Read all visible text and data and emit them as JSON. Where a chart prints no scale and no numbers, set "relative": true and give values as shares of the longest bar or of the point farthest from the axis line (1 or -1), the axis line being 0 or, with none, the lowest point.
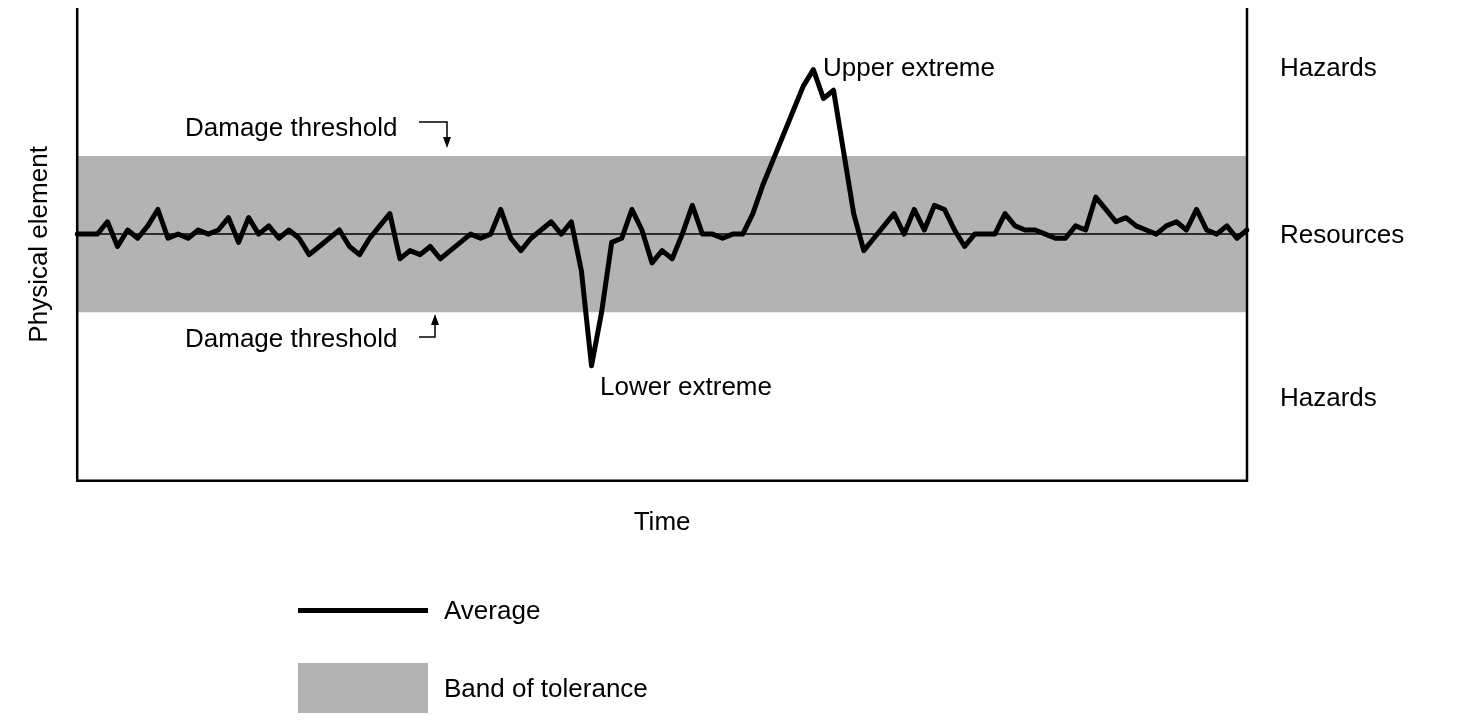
{
  "chart_data": {
    "type": "line",
    "relative": true,
    "xlabel": "Time",
    "ylabel": "Physical element",
    "tick_labels": false,
    "grid": false,
    "legend": "bottom",
    "marker": "none",
    "line_style": "solid",
    "categories": [
      null,
      null,
      null,
      null,
      null,
      null,
      null,
      null,
      null,
      null,
      null,
      null,
      null,
      null,
      null,
      null,
      null,
      null,
      null,
      null,
      null,
      null,
      null,
      null,
      null,
      null,
      null,
      null,
      null,
      null,
      null,
      null,
      null,
      null,
      null,
      null,
      null,
      null,
      null,
      null,
      null,
      null,
      null,
      null,
      null,
      null,
      null,
      null,
      null,
      null,
      null,
      null,
      null,
      null,
      null,
      null,
      null,
      null,
      null,
      null,
      null,
      null,
      null,
      null,
      null,
      null,
      null,
      null,
      null,
      null,
      null,
      null,
      null,
      null,
      null,
      null,
      null,
      null,
      null,
      null,
      null,
      null,
      null,
      null,
      null,
      null,
      null,
      null,
      null,
      null,
      null,
      null,
      null,
      null,
      null,
      null,
      null,
      null,
      null,
      null,
      null,
      null,
      null,
      null,
      null,
      null,
      null,
      null,
      null,
      null,
      null,
      null,
      null,
      null,
      null,
      null,
      null
    ],
    "series": [
      {
        "name": "Average",
        "color": "#000000",
        "values": [
          0.6,
          0.6,
          0.6,
          0.63,
          0.57,
          0.61,
          0.59,
          0.62,
          0.66,
          0.59,
          0.6,
          0.59,
          0.61,
          0.6,
          0.61,
          0.64,
          0.58,
          0.64,
          0.6,
          0.62,
          0.59,
          0.61,
          0.59,
          0.55,
          0.57,
          0.59,
          0.61,
          0.57,
          0.55,
          0.59,
          0.62,
          0.65,
          0.54,
          0.56,
          0.55,
          0.57,
          0.54,
          0.56,
          0.58,
          0.6,
          0.59,
          0.6,
          0.66,
          0.59,
          0.56,
          0.59,
          0.61,
          0.63,
          0.6,
          0.63,
          0.51,
          0.28,
          0.41,
          0.58,
          0.59,
          0.66,
          0.61,
          0.53,
          0.56,
          0.54,
          0.6,
          0.67,
          0.6,
          0.6,
          0.59,
          0.6,
          0.6,
          0.65,
          0.72,
          0.78,
          0.84,
          0.9,
          0.96,
          1.0,
          0.93,
          0.95,
          0.8,
          0.65,
          0.56,
          0.59,
          0.62,
          0.65,
          0.6,
          0.66,
          0.61,
          0.67,
          0.66,
          0.61,
          0.57,
          0.6,
          0.6,
          0.6,
          0.65,
          0.62,
          0.61,
          0.61,
          0.6,
          0.59,
          0.59,
          0.62,
          0.61,
          0.69,
          0.66,
          0.63,
          0.64,
          0.62,
          0.61,
          0.6,
          0.62,
          0.63,
          0.61,
          0.66,
          0.61,
          0.6,
          0.62,
          0.59,
          0.61
        ]
      }
    ],
    "ref_lines": [
      {
        "axis": "y",
        "value": 0.6,
        "color": "#000000"
      }
    ],
    "bands": [
      {
        "axis": "y",
        "from": 0.41,
        "to": 0.79,
        "label": "Band of tolerance",
        "color": "#b3b3b3"
      }
    ],
    "annotations": [
      "Upper extreme",
      "Lower extreme",
      {
        "text": "Damage threshold",
        "y": 0.79
      },
      {
        "text": "Damage threshold",
        "y": 0.41
      },
      "Hazards",
      "Resources",
      "Hazards"
    ]
  }
}
